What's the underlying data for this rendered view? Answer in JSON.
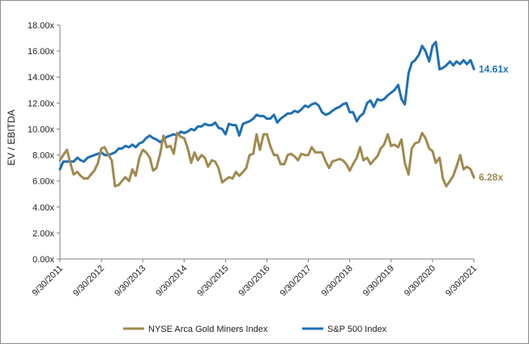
{
  "chart_data": {
    "type": "line",
    "ylabel": "EV / EBITDA",
    "xlabel": "",
    "ylim": [
      0,
      18
    ],
    "y_ticks": [
      "0.00x",
      "2.00x",
      "4.00x",
      "6.00x",
      "8.00x",
      "10.00x",
      "12.00x",
      "14.00x",
      "16.00x",
      "18.00x"
    ],
    "x_ticks": [
      {
        "label": "9/30/2011",
        "x": 2011.75
      },
      {
        "label": "9/30/2012",
        "x": 2012.75
      },
      {
        "label": "9/30/2013",
        "x": 2013.75
      },
      {
        "label": "9/30/2014",
        "x": 2014.75
      },
      {
        "label": "9/30/2015",
        "x": 2015.75
      },
      {
        "label": "9/30/2016",
        "x": 2016.75
      },
      {
        "label": "9/30/2017",
        "x": 2017.75
      },
      {
        "label": "9/30/2018",
        "x": 2018.75
      },
      {
        "label": "9/30/2019",
        "x": 2019.75
      },
      {
        "label": "9/30/2020",
        "x": 2020.75
      },
      {
        "label": "9/30/2021",
        "x": 2021.75
      }
    ],
    "xlim": [
      2011.75,
      2021.75
    ],
    "legend_position": "bottom",
    "series": [
      {
        "name": "S&P 500 Index",
        "color": "#1f6fb5",
        "end_label": "14.61x",
        "points": [
          [
            2011.75,
            6.9
          ],
          [
            2011.83,
            7.5
          ],
          [
            2011.92,
            7.5
          ],
          [
            2012.0,
            7.5
          ],
          [
            2012.08,
            7.5
          ],
          [
            2012.17,
            7.8
          ],
          [
            2012.25,
            7.6
          ],
          [
            2012.33,
            7.5
          ],
          [
            2012.42,
            7.8
          ],
          [
            2012.5,
            7.9
          ],
          [
            2012.58,
            8.0
          ],
          [
            2012.67,
            8.1
          ],
          [
            2012.75,
            8.2
          ],
          [
            2012.83,
            8.0
          ],
          [
            2012.92,
            8.0
          ],
          [
            2013.0,
            8.1
          ],
          [
            2013.08,
            8.2
          ],
          [
            2013.17,
            8.5
          ],
          [
            2013.25,
            8.5
          ],
          [
            2013.33,
            8.7
          ],
          [
            2013.42,
            8.6
          ],
          [
            2013.5,
            8.8
          ],
          [
            2013.58,
            8.6
          ],
          [
            2013.67,
            8.9
          ],
          [
            2013.75,
            9.0
          ],
          [
            2013.83,
            9.3
          ],
          [
            2013.92,
            9.5
          ],
          [
            2014.0,
            9.3
          ],
          [
            2014.08,
            9.2
          ],
          [
            2014.17,
            9.0
          ],
          [
            2014.25,
            9.2
          ],
          [
            2014.33,
            9.4
          ],
          [
            2014.42,
            9.5
          ],
          [
            2014.5,
            9.6
          ],
          [
            2014.58,
            9.5
          ],
          [
            2014.67,
            9.8
          ],
          [
            2014.75,
            9.7
          ],
          [
            2014.83,
            9.8
          ],
          [
            2014.92,
            10.0
          ],
          [
            2015.0,
            9.9
          ],
          [
            2015.08,
            10.2
          ],
          [
            2015.17,
            10.2
          ],
          [
            2015.25,
            10.4
          ],
          [
            2015.33,
            10.3
          ],
          [
            2015.42,
            10.3
          ],
          [
            2015.5,
            10.5
          ],
          [
            2015.58,
            10.1
          ],
          [
            2015.67,
            10.0
          ],
          [
            2015.75,
            9.6
          ],
          [
            2015.83,
            10.4
          ],
          [
            2015.92,
            10.3
          ],
          [
            2016.0,
            10.3
          ],
          [
            2016.08,
            9.5
          ],
          [
            2016.17,
            10.4
          ],
          [
            2016.25,
            10.5
          ],
          [
            2016.33,
            10.6
          ],
          [
            2016.42,
            10.8
          ],
          [
            2016.5,
            11.1
          ],
          [
            2016.58,
            11.0
          ],
          [
            2016.67,
            11.0
          ],
          [
            2016.75,
            10.8
          ],
          [
            2016.83,
            10.8
          ],
          [
            2016.92,
            11.1
          ],
          [
            2017.0,
            10.5
          ],
          [
            2017.08,
            10.8
          ],
          [
            2017.17,
            11.0
          ],
          [
            2017.25,
            11.2
          ],
          [
            2017.33,
            11.2
          ],
          [
            2017.42,
            11.4
          ],
          [
            2017.5,
            11.3
          ],
          [
            2017.58,
            11.5
          ],
          [
            2017.67,
            11.8
          ],
          [
            2017.75,
            11.7
          ],
          [
            2017.83,
            11.9
          ],
          [
            2017.92,
            12.0
          ],
          [
            2018.0,
            11.8
          ],
          [
            2018.08,
            11.3
          ],
          [
            2018.17,
            11.1
          ],
          [
            2018.25,
            11.2
          ],
          [
            2018.33,
            11.4
          ],
          [
            2018.42,
            11.6
          ],
          [
            2018.5,
            11.7
          ],
          [
            2018.58,
            11.9
          ],
          [
            2018.67,
            12.0
          ],
          [
            2018.75,
            11.3
          ],
          [
            2018.83,
            11.3
          ],
          [
            2018.92,
            10.6
          ],
          [
            2019.0,
            11.0
          ],
          [
            2019.08,
            11.2
          ],
          [
            2019.17,
            12.0
          ],
          [
            2019.25,
            12.2
          ],
          [
            2019.33,
            11.7
          ],
          [
            2019.42,
            12.3
          ],
          [
            2019.5,
            12.2
          ],
          [
            2019.58,
            12.3
          ],
          [
            2019.67,
            12.6
          ],
          [
            2019.75,
            12.8
          ],
          [
            2019.83,
            13.0
          ],
          [
            2019.92,
            13.4
          ],
          [
            2020.0,
            12.3
          ],
          [
            2020.08,
            11.9
          ],
          [
            2020.17,
            14.3
          ],
          [
            2020.25,
            15.1
          ],
          [
            2020.33,
            15.3
          ],
          [
            2020.42,
            15.7
          ],
          [
            2020.5,
            16.4
          ],
          [
            2020.58,
            16.0
          ],
          [
            2020.67,
            15.2
          ],
          [
            2020.75,
            16.4
          ],
          [
            2020.83,
            16.7
          ],
          [
            2020.92,
            14.6
          ],
          [
            2021.0,
            14.7
          ],
          [
            2021.08,
            14.9
          ],
          [
            2021.17,
            15.2
          ],
          [
            2021.25,
            14.9
          ],
          [
            2021.33,
            15.2
          ],
          [
            2021.42,
            15.0
          ],
          [
            2021.5,
            15.3
          ],
          [
            2021.58,
            15.0
          ],
          [
            2021.67,
            15.3
          ],
          [
            2021.75,
            14.61
          ]
        ]
      },
      {
        "name": "NYSE Arca Gold Miners Index",
        "color": "#a08a4f",
        "end_label": "6.28x",
        "points": [
          [
            2011.75,
            7.6
          ],
          [
            2011.83,
            8.0
          ],
          [
            2011.92,
            8.4
          ],
          [
            2012.0,
            7.4
          ],
          [
            2012.08,
            6.5
          ],
          [
            2012.17,
            6.7
          ],
          [
            2012.25,
            6.4
          ],
          [
            2012.33,
            6.2
          ],
          [
            2012.42,
            6.2
          ],
          [
            2012.5,
            6.5
          ],
          [
            2012.58,
            6.8
          ],
          [
            2012.67,
            7.4
          ],
          [
            2012.75,
            8.5
          ],
          [
            2012.83,
            8.6
          ],
          [
            2012.92,
            8.0
          ],
          [
            2013.0,
            7.6
          ],
          [
            2013.08,
            5.6
          ],
          [
            2013.17,
            5.7
          ],
          [
            2013.25,
            6.0
          ],
          [
            2013.33,
            6.3
          ],
          [
            2013.42,
            6.0
          ],
          [
            2013.5,
            6.9
          ],
          [
            2013.58,
            6.4
          ],
          [
            2013.67,
            7.8
          ],
          [
            2013.75,
            8.4
          ],
          [
            2013.83,
            8.2
          ],
          [
            2013.92,
            7.8
          ],
          [
            2014.0,
            6.8
          ],
          [
            2014.08,
            7.0
          ],
          [
            2014.17,
            8.1
          ],
          [
            2014.25,
            9.5
          ],
          [
            2014.33,
            8.6
          ],
          [
            2014.42,
            8.7
          ],
          [
            2014.5,
            8.1
          ],
          [
            2014.58,
            9.7
          ],
          [
            2014.67,
            9.4
          ],
          [
            2014.75,
            9.3
          ],
          [
            2014.83,
            8.6
          ],
          [
            2014.92,
            7.4
          ],
          [
            2015.0,
            8.2
          ],
          [
            2015.08,
            7.6
          ],
          [
            2015.17,
            8.0
          ],
          [
            2015.25,
            7.8
          ],
          [
            2015.33,
            7.1
          ],
          [
            2015.42,
            7.6
          ],
          [
            2015.5,
            7.5
          ],
          [
            2015.58,
            7.0
          ],
          [
            2015.67,
            5.9
          ],
          [
            2015.75,
            6.1
          ],
          [
            2015.83,
            6.3
          ],
          [
            2015.92,
            6.2
          ],
          [
            2016.0,
            6.7
          ],
          [
            2016.08,
            6.4
          ],
          [
            2016.17,
            6.7
          ],
          [
            2016.25,
            7.0
          ],
          [
            2016.33,
            8.0
          ],
          [
            2016.42,
            8.1
          ],
          [
            2016.5,
            9.6
          ],
          [
            2016.58,
            8.4
          ],
          [
            2016.67,
            9.6
          ],
          [
            2016.75,
            9.6
          ],
          [
            2016.83,
            8.7
          ],
          [
            2016.92,
            8.0
          ],
          [
            2017.0,
            8.0
          ],
          [
            2017.08,
            7.3
          ],
          [
            2017.17,
            7.3
          ],
          [
            2017.25,
            8.0
          ],
          [
            2017.33,
            8.1
          ],
          [
            2017.42,
            7.9
          ],
          [
            2017.5,
            7.6
          ],
          [
            2017.58,
            8.1
          ],
          [
            2017.67,
            8.0
          ],
          [
            2017.75,
            8.0
          ],
          [
            2017.83,
            8.6
          ],
          [
            2017.92,
            8.2
          ],
          [
            2018.0,
            8.2
          ],
          [
            2018.08,
            8.2
          ],
          [
            2018.17,
            7.5
          ],
          [
            2018.25,
            7.0
          ],
          [
            2018.33,
            7.5
          ],
          [
            2018.42,
            7.6
          ],
          [
            2018.5,
            7.7
          ],
          [
            2018.58,
            7.6
          ],
          [
            2018.67,
            7.3
          ],
          [
            2018.75,
            6.8
          ],
          [
            2018.83,
            7.3
          ],
          [
            2018.92,
            7.8
          ],
          [
            2019.0,
            8.6
          ],
          [
            2019.08,
            7.6
          ],
          [
            2019.17,
            7.8
          ],
          [
            2019.25,
            7.3
          ],
          [
            2019.33,
            7.6
          ],
          [
            2019.42,
            7.9
          ],
          [
            2019.5,
            8.5
          ],
          [
            2019.58,
            8.8
          ],
          [
            2019.67,
            9.6
          ],
          [
            2019.75,
            8.7
          ],
          [
            2019.83,
            8.8
          ],
          [
            2019.92,
            8.6
          ],
          [
            2020.0,
            9.2
          ],
          [
            2020.08,
            7.4
          ],
          [
            2020.17,
            6.5
          ],
          [
            2020.25,
            8.5
          ],
          [
            2020.33,
            8.9
          ],
          [
            2020.42,
            9.0
          ],
          [
            2020.5,
            9.7
          ],
          [
            2020.58,
            9.3
          ],
          [
            2020.67,
            8.5
          ],
          [
            2020.75,
            8.3
          ],
          [
            2020.83,
            7.4
          ],
          [
            2020.92,
            7.8
          ],
          [
            2021.0,
            6.2
          ],
          [
            2021.08,
            5.6
          ],
          [
            2021.17,
            6.0
          ],
          [
            2021.25,
            6.4
          ],
          [
            2021.33,
            7.1
          ],
          [
            2021.42,
            8.0
          ],
          [
            2021.5,
            6.9
          ],
          [
            2021.58,
            7.1
          ],
          [
            2021.67,
            6.9
          ],
          [
            2021.75,
            6.28
          ]
        ]
      }
    ],
    "legend": [
      {
        "name": "NYSE Arca Gold Miners Index",
        "color": "#a08a4f"
      },
      {
        "name": "S&P 500 Index",
        "color": "#1f6fb5"
      }
    ]
  }
}
